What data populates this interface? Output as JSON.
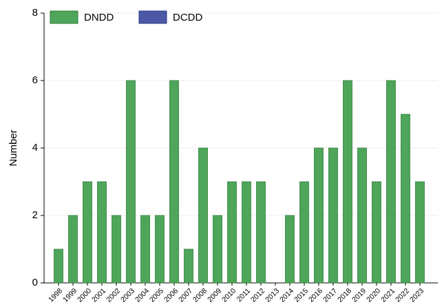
{
  "chart_data": {
    "type": "bar",
    "stacked": true,
    "y_label": "Number",
    "categories": [
      "1998",
      "1999",
      "2000",
      "2001",
      "2002",
      "2003",
      "2004",
      "2005",
      "2006",
      "2007",
      "2008",
      "2009",
      "2010",
      "2011",
      "2012",
      "2013",
      "2014",
      "2015",
      "2016",
      "2017",
      "2018",
      "2019",
      "2020",
      "2021",
      "2022",
      "2023"
    ],
    "series": [
      {
        "name": "DNDD",
        "color": "#4fa65b",
        "values": [
          1,
          2,
          3,
          3,
          2,
          6,
          2,
          2,
          6,
          1,
          4,
          2,
          3,
          3,
          3,
          0,
          2,
          3,
          4,
          4,
          6,
          4,
          3,
          6,
          5,
          3
        ]
      },
      {
        "name": "DCDD",
        "color": "#4b58a6",
        "values": [
          0,
          0,
          0,
          0,
          0,
          0,
          0,
          0,
          0,
          0,
          0,
          0,
          0,
          0,
          0,
          0,
          0,
          0,
          0,
          0,
          0,
          0,
          0,
          0,
          0,
          0
        ]
      }
    ],
    "ylim": [
      0,
      8
    ],
    "yticks": [
      0,
      2,
      4,
      6,
      8
    ],
    "grid": true,
    "legend": "top-left"
  }
}
